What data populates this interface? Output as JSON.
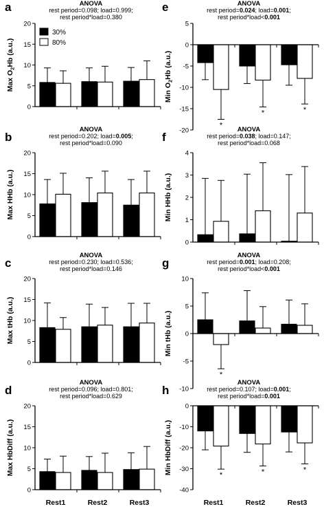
{
  "chart_data": [
    {
      "letter": "a",
      "anova_header": "ANOVA",
      "stats": [
        [
          {
            "t": "rest period=0.098; load=0.999;",
            "b": false
          }
        ],
        [
          {
            "t": "rest period*load=0.380",
            "b": false
          }
        ]
      ],
      "type": "bar",
      "ylabel": "Max O2Hb (a.u.)",
      "ylim": [
        0,
        20
      ],
      "yticks": [
        0,
        5,
        10,
        15,
        20
      ],
      "legend": [
        "30%",
        "80%"
      ],
      "categories": [
        "Rest1",
        "Rest2",
        "Rest3"
      ],
      "series": [
        {
          "name": "30%",
          "values": [
            5.8,
            6.0,
            6.1
          ],
          "errors": [
            3.5,
            3.3,
            3.3
          ]
        },
        {
          "name": "80%",
          "values": [
            5.6,
            5.9,
            6.5
          ],
          "errors": [
            3.0,
            3.8,
            4.5
          ]
        }
      ],
      "stars": []
    },
    {
      "letter": "b",
      "anova_header": "ANOVA",
      "stats": [
        [
          {
            "t": "rest period=0.202; load=",
            "b": false
          },
          {
            "t": "0.005",
            "b": true
          },
          {
            "t": ";",
            "b": false
          }
        ],
        [
          {
            "t": "rest period*load=0.090",
            "b": false
          }
        ]
      ],
      "type": "bar",
      "ylabel": "Max HHb (a.u.)",
      "ylim": [
        0,
        20
      ],
      "yticks": [
        0,
        5,
        10,
        15,
        20
      ],
      "categories": [
        "Rest1",
        "Rest2",
        "Rest3"
      ],
      "series": [
        {
          "name": "30%",
          "values": [
            7.8,
            8.1,
            7.5
          ],
          "errors": [
            5.8,
            5.9,
            6.1
          ]
        },
        {
          "name": "80%",
          "values": [
            10.1,
            10.4,
            10.4
          ],
          "errors": [
            5.0,
            5.2,
            5.2
          ]
        }
      ],
      "stars": []
    },
    {
      "letter": "c",
      "anova_header": "ANOVA",
      "stats": [
        [
          {
            "t": "rest period=0.230; load=0.536;",
            "b": false
          }
        ],
        [
          {
            "t": "rest period*load=0.146",
            "b": false
          }
        ]
      ],
      "type": "bar",
      "ylabel": "Max tHb (a.u.)",
      "ylim": [
        0,
        20
      ],
      "yticks": [
        0,
        5,
        10,
        15,
        20
      ],
      "categories": [
        "Rest1",
        "Rest2",
        "Rest3"
      ],
      "series": [
        {
          "name": "30%",
          "values": [
            8.3,
            8.5,
            8.5
          ],
          "errors": [
            5.9,
            5.4,
            5.6
          ]
        },
        {
          "name": "80%",
          "values": [
            7.9,
            8.9,
            9.4
          ],
          "errors": [
            2.8,
            4.2,
            4.7
          ]
        }
      ],
      "stars": []
    },
    {
      "letter": "d",
      "anova_header": "ANOVA",
      "stats": [
        [
          {
            "t": "rest period=0.096; load=0.801;",
            "b": false
          }
        ],
        [
          {
            "t": "rest period*load=0.629",
            "b": false
          }
        ]
      ],
      "type": "bar",
      "ylabel": "Max HbDiff (a.u.)",
      "ylim": [
        0,
        20
      ],
      "yticks": [
        0,
        5,
        10,
        15,
        20
      ],
      "categories": [
        "Rest1",
        "Rest2",
        "Rest3"
      ],
      "series": [
        {
          "name": "30%",
          "values": [
            4.3,
            4.6,
            4.8
          ],
          "errors": [
            3.0,
            3.3,
            4.0
          ]
        },
        {
          "name": "80%",
          "values": [
            4.1,
            4.1,
            4.9
          ],
          "errors": [
            3.9,
            4.6,
            5.4
          ]
        }
      ],
      "stars": []
    },
    {
      "letter": "e",
      "anova_header": "ANOVA",
      "stats": [
        [
          {
            "t": "rest period=",
            "b": false
          },
          {
            "t": "0.024",
            "b": true
          },
          {
            "t": "; load=",
            "b": false
          },
          {
            "t": "0.001",
            "b": true
          },
          {
            "t": ";",
            "b": false
          }
        ],
        [
          {
            "t": "rest period*load<",
            "b": false
          },
          {
            "t": "0.001",
            "b": true
          }
        ]
      ],
      "type": "bar",
      "ylabel": "Min O2Hb (a.u.)",
      "ylim": [
        -20,
        5
      ],
      "yticks": [
        -20,
        -15,
        -10,
        -5,
        0,
        5
      ],
      "categories": [
        "Rest1",
        "Rest2",
        "Rest3"
      ],
      "series": [
        {
          "name": "30%",
          "values": [
            -4.2,
            -5.0,
            -4.7
          ],
          "errors": [
            4.0,
            4.1,
            4.8
          ]
        },
        {
          "name": "80%",
          "values": [
            -10.5,
            -8.3,
            -7.9
          ],
          "errors": [
            7.0,
            6.3,
            6.0
          ]
        }
      ],
      "stars": [
        true,
        true,
        true
      ],
      "star_symbol": "*"
    },
    {
      "letter": "f",
      "anova_header": "ANOVA",
      "stats": [
        [
          {
            "t": "rest period=",
            "b": false
          },
          {
            "t": "0.038",
            "b": true
          },
          {
            "t": "; load=0.147;",
            "b": false
          }
        ],
        [
          {
            "t": "rest period*load=0.068",
            "b": false
          }
        ]
      ],
      "type": "bar",
      "ylabel": "Min HHb (a.u.)",
      "ylim": [
        0,
        4
      ],
      "yticks": [
        0,
        1,
        2,
        3,
        4
      ],
      "categories": [
        "Rest1",
        "Rest2",
        "Rest3"
      ],
      "series": [
        {
          "name": "30%",
          "values": [
            0.33,
            0.37,
            0.04
          ],
          "errors": [
            2.52,
            2.67,
            2.98
          ]
        },
        {
          "name": "80%",
          "values": [
            0.93,
            1.4,
            1.3
          ],
          "errors": [
            1.83,
            2.15,
            2.08
          ]
        }
      ],
      "stars": []
    },
    {
      "letter": "g",
      "anova_header": "ANOVA",
      "stats": [
        [
          {
            "t": "rest period=",
            "b": false
          },
          {
            "t": "0.001",
            "b": true
          },
          {
            "t": "; load=0.208;",
            "b": false
          }
        ],
        [
          {
            "t": "rest period*load<",
            "b": false
          },
          {
            "t": "0.001",
            "b": true
          }
        ]
      ],
      "type": "bar",
      "ylabel": "Min tHb (a.u.)",
      "ylim": [
        -10,
        10
      ],
      "yticks": [
        -10,
        -5,
        0,
        5,
        10
      ],
      "categories": [
        "Rest1",
        "Rest2",
        "Rest3"
      ],
      "series": [
        {
          "name": "30%",
          "values": [
            2.5,
            2.3,
            1.7
          ],
          "errors": [
            4.9,
            5.5,
            4.4
          ]
        },
        {
          "name": "80%",
          "values": [
            -2.0,
            1.0,
            1.5
          ],
          "errors": [
            4.4,
            3.9,
            3.9
          ]
        }
      ],
      "stars": [
        true,
        false,
        false
      ],
      "star_symbol": "*"
    },
    {
      "letter": "h",
      "anova_header": "ANOVA",
      "stats": [
        [
          {
            "t": "rest period=0.107; load=",
            "b": false
          },
          {
            "t": "0.001",
            "b": true
          },
          {
            "t": ";",
            "b": false
          }
        ],
        [
          {
            "t": "rest period*load=",
            "b": false
          },
          {
            "t": "0.001",
            "b": true
          }
        ]
      ],
      "type": "bar",
      "ylabel": "Min HbDiff (a.u.)",
      "ylim": [
        -40,
        0
      ],
      "yticks": [
        -40,
        -30,
        -20,
        -10,
        0
      ],
      "categories": [
        "Rest1",
        "Rest2",
        "Rest3"
      ],
      "series": [
        {
          "name": "30%",
          "values": [
            -12.0,
            -13.2,
            -12.5
          ],
          "errors": [
            9.0,
            9.0,
            9.5
          ]
        },
        {
          "name": "80%",
          "values": [
            -19.2,
            -18.2,
            -17.7
          ],
          "errors": [
            11.0,
            10.5,
            10.0
          ]
        }
      ],
      "stars": [
        true,
        true,
        true
      ],
      "star_symbol": "*"
    }
  ],
  "colors": {
    "series_30": "#000000",
    "series_80": "#ffffff",
    "outline": "#000000"
  }
}
